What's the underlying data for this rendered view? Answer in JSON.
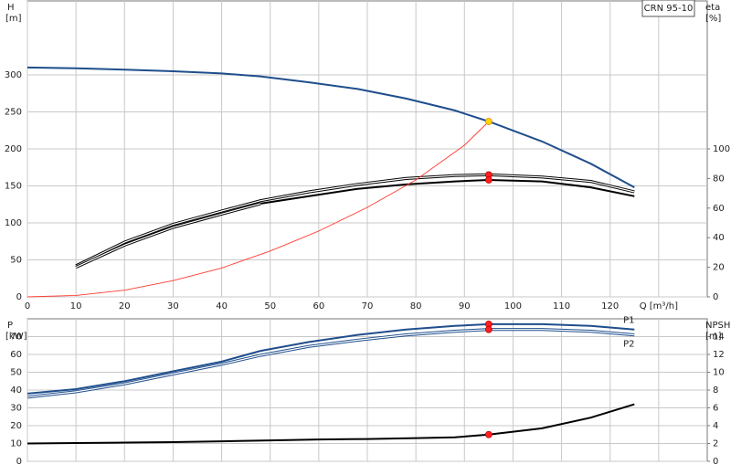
{
  "chart_data": [
    {
      "type": "line",
      "title": "CRN 95-10",
      "ylabel": "H",
      "yunit": "[m]",
      "y2label": "eta",
      "y2unit": "[%]",
      "xlim": [
        0,
        140
      ],
      "xticks": [
        0,
        10,
        20,
        30,
        40,
        50,
        60,
        70,
        80,
        90,
        100,
        110,
        120,
        {
          "value": 130,
          "label": "Q [m³/h]"
        }
      ],
      "ylim": [
        0,
        400
      ],
      "yticks": [
        0,
        50,
        100,
        150,
        200,
        250,
        300
      ],
      "y2lim": [
        0,
        200
      ],
      "y2ticks": [
        0,
        20,
        40,
        60,
        80,
        100
      ],
      "grid": true,
      "xtick_labels": true,
      "series": [
        {
          "color": "#1f4e8c",
          "style": "solid",
          "x": [
            0,
            10,
            20,
            30,
            40,
            48,
            58,
            68,
            78,
            88,
            95,
            106,
            116,
            125
          ],
          "values": [
            310,
            309,
            307,
            305,
            302,
            298,
            290,
            281,
            268,
            252,
            237,
            210,
            180,
            148
          ]
        },
        {
          "color": "#000000",
          "style": "double",
          "axis": "y2",
          "x": [
            10,
            20,
            30,
            40,
            48,
            58,
            68,
            78,
            88,
            95,
            106,
            116,
            125
          ],
          "values": [
            21,
            37,
            49,
            58,
            65,
            71,
            76,
            80,
            82,
            82.5,
            81,
            78,
            71
          ]
        },
        {
          "color": "#000000",
          "style": "solid",
          "axis": "y2",
          "x": [
            48,
            58,
            68,
            78,
            88,
            95,
            106,
            116,
            125
          ],
          "values": [
            63,
            68,
            73,
            76,
            78,
            79,
            78,
            74,
            68
          ]
        },
        {
          "color": "#000000",
          "style": "double",
          "axis": "y2",
          "x": [
            10,
            20,
            30,
            40,
            48
          ],
          "values": [
            20,
            35,
            47,
            56,
            63
          ]
        },
        {
          "color": "#ff3b30",
          "style": "thin",
          "x": [
            0,
            10,
            20,
            30,
            40,
            50,
            60,
            70,
            80,
            90,
            95
          ],
          "values": [
            0,
            2,
            9,
            22,
            39,
            62,
            89,
            121,
            158,
            205,
            237
          ]
        }
      ],
      "points": [
        {
          "x": 95,
          "y": 237,
          "color": "#ffd400"
        },
        {
          "x": 95,
          "y": 82.5,
          "axis": "y2",
          "color": "#ff2020"
        },
        {
          "x": 95,
          "y": 79,
          "axis": "y2",
          "color": "#ff2020"
        }
      ]
    },
    {
      "type": "line",
      "ylabel": "P",
      "yunit": "[kW]",
      "y2label": "NPSH",
      "y2unit": "[m]",
      "xlim": [
        0,
        140
      ],
      "xticks": [
        0,
        10,
        20,
        30,
        40,
        50,
        60,
        70,
        80,
        90,
        100,
        110,
        120,
        130
      ],
      "ylim": [
        0,
        80
      ],
      "yticks": [
        0,
        10,
        20,
        30,
        40,
        50,
        60,
        70
      ],
      "y2lim": [
        0,
        16
      ],
      "y2ticks": [
        0,
        2,
        4,
        6,
        8,
        10,
        12,
        14
      ],
      "grid": true,
      "xtick_labels": false,
      "series": [
        {
          "name": "P1",
          "color": "#1f4e8c",
          "style": "solid",
          "x": [
            0,
            10,
            20,
            30,
            40,
            48,
            58,
            68,
            78,
            88,
            95,
            106,
            116,
            125
          ],
          "values": [
            38,
            40.5,
            45,
            50.5,
            56,
            62,
            67,
            71,
            74,
            76,
            77,
            77,
            76,
            74
          ]
        },
        {
          "name": "P2",
          "color": "#1f4e8c",
          "style": "double",
          "x": [
            0,
            10,
            20,
            30,
            40,
            48,
            58,
            68,
            78,
            88,
            95,
            106,
            116,
            125
          ],
          "values": [
            36,
            39,
            43.5,
            49,
            54.5,
            59.5,
            64.5,
            68,
            71,
            73,
            74,
            74,
            73,
            71
          ]
        },
        {
          "color": "#000000",
          "style": "solid",
          "axis": "y2",
          "x": [
            0,
            10,
            20,
            30,
            40,
            50,
            60,
            70,
            80,
            88,
            95,
            106,
            116,
            125
          ],
          "values": [
            2,
            2.05,
            2.1,
            2.15,
            2.25,
            2.35,
            2.45,
            2.5,
            2.6,
            2.7,
            3,
            3.7,
            4.9,
            6.4
          ]
        }
      ],
      "points": [
        {
          "x": 95,
          "y": 77,
          "color": "#ff2020"
        },
        {
          "x": 95,
          "y": 74,
          "color": "#ff2020"
        },
        {
          "x": 95,
          "y": 3,
          "axis": "y2",
          "color": "#ff2020"
        }
      ]
    }
  ]
}
